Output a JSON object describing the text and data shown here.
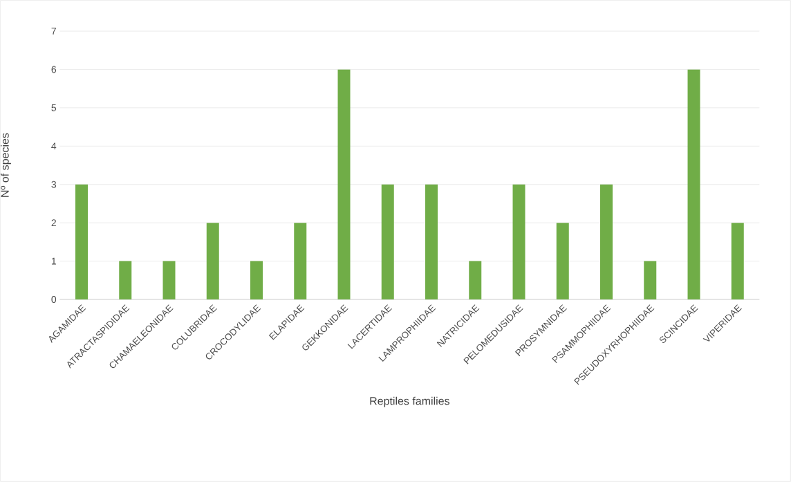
{
  "chart_data": {
    "type": "bar",
    "xlabel": "Reptiles families",
    "ylabel": "Nº of species",
    "categories": [
      "AGAMIDAE",
      "ATRACTASPIDIDAE",
      "CHAMAELEONIDAE",
      "COLUBRIDAE",
      "CROCODYLIDAE",
      "ELAPIDAE",
      "GEKKONIDAE",
      "LACERTIDAE",
      "LAMPROPHIIDAE",
      "NATRICIDAE",
      "PELOMEDUSIDAE",
      "PROSYMNIDAE",
      "PSAMMOPHIIDAE",
      "PSEUDOXYRHOPHIIDAE",
      "SCINCIDAE",
      "VIPERIDAE"
    ],
    "values": [
      3,
      1,
      1,
      2,
      1,
      2,
      6,
      3,
      3,
      1,
      3,
      2,
      3,
      1,
      6,
      2
    ],
    "color": "#70ad47",
    "ylim": [
      0,
      7
    ],
    "yticks": [
      0,
      1,
      2,
      3,
      4,
      5,
      6,
      7
    ],
    "grid": "y"
  }
}
